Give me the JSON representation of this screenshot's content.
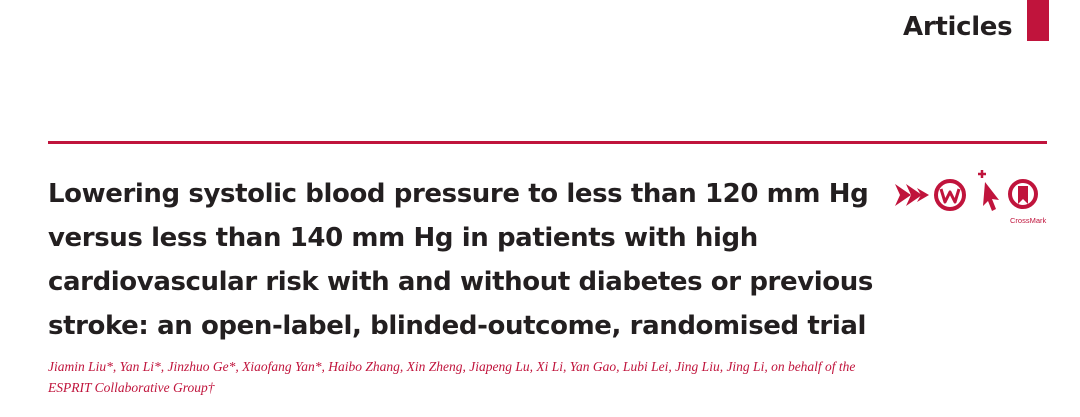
{
  "header": {
    "section_label": "Articles"
  },
  "article": {
    "title_lines": [
      "Lowering systolic blood pressure to less than 120 mm Hg",
      "versus less than 140 mm Hg in patients with high",
      "cardiovascular risk with and without diabetes or previous",
      "stroke: an open-label, blinded-outcome, randomised trial"
    ],
    "author_lines": [
      "Jiamin Liu*, Yan Li*, Jinzhuo Ge*, Xiaofang Yan*, Haibo Zhang, Xin Zheng, Jiapeng Lu, Xi Li, Yan Gao, Lubi Lei, Jing Liu, Jing Li, on behalf of the",
      "ESPRIT Collaborative Group†"
    ]
  },
  "icons": [
    {
      "name": "forward-arrows-icon"
    },
    {
      "name": "web-w-icon"
    },
    {
      "name": "click-cursor-icon"
    },
    {
      "name": "crossmark-icon",
      "label": "CrossMark"
    }
  ],
  "colors": {
    "accent": "#c0143c",
    "text": "#231f20"
  }
}
